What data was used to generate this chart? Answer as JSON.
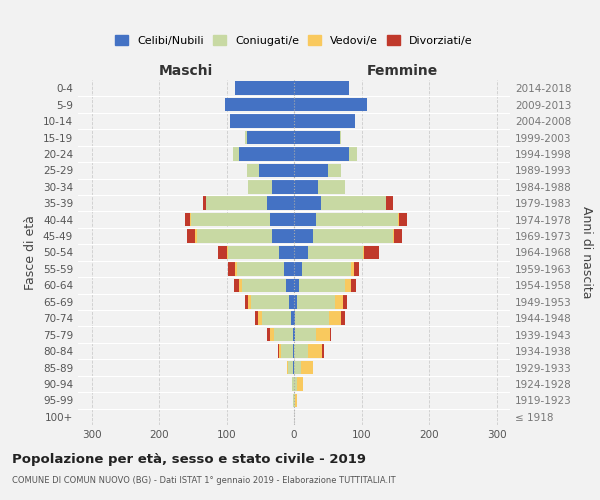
{
  "age_groups": [
    "100+",
    "95-99",
    "90-94",
    "85-89",
    "80-84",
    "75-79",
    "70-74",
    "65-69",
    "60-64",
    "55-59",
    "50-54",
    "45-49",
    "40-44",
    "35-39",
    "30-34",
    "25-29",
    "20-24",
    "15-19",
    "10-14",
    "5-9",
    "0-4"
  ],
  "birth_years": [
    "≤ 1918",
    "1919-1923",
    "1924-1928",
    "1929-1933",
    "1934-1938",
    "1939-1943",
    "1944-1948",
    "1949-1953",
    "1954-1958",
    "1959-1963",
    "1964-1968",
    "1969-1973",
    "1974-1978",
    "1979-1983",
    "1984-1988",
    "1989-1993",
    "1994-1998",
    "1999-2003",
    "2004-2008",
    "2009-2013",
    "2014-2018"
  ],
  "maschi": {
    "celibi": [
      0,
      0,
      0,
      1,
      1,
      2,
      5,
      8,
      12,
      15,
      22,
      32,
      35,
      40,
      32,
      52,
      82,
      70,
      95,
      102,
      87
    ],
    "coniugati": [
      0,
      1,
      3,
      8,
      18,
      28,
      42,
      55,
      65,
      70,
      76,
      112,
      118,
      90,
      36,
      18,
      8,
      2,
      0,
      0,
      0
    ],
    "vedovi": [
      0,
      0,
      0,
      2,
      3,
      5,
      6,
      5,
      4,
      3,
      2,
      2,
      1,
      0,
      0,
      0,
      0,
      0,
      0,
      0,
      0
    ],
    "divorziati": [
      0,
      0,
      0,
      0,
      2,
      5,
      5,
      5,
      8,
      10,
      12,
      12,
      8,
      5,
      0,
      0,
      0,
      0,
      0,
      0,
      0
    ]
  },
  "femmine": {
    "nubili": [
      0,
      0,
      0,
      0,
      0,
      1,
      2,
      5,
      8,
      12,
      20,
      28,
      32,
      40,
      36,
      50,
      82,
      68,
      90,
      108,
      82
    ],
    "coniugate": [
      0,
      1,
      5,
      10,
      20,
      32,
      50,
      56,
      68,
      72,
      82,
      118,
      122,
      96,
      40,
      20,
      12,
      2,
      0,
      0,
      0
    ],
    "vedove": [
      0,
      3,
      8,
      18,
      22,
      20,
      18,
      12,
      8,
      5,
      2,
      2,
      2,
      0,
      0,
      0,
      0,
      0,
      0,
      0,
      0
    ],
    "divorziate": [
      0,
      0,
      0,
      0,
      2,
      2,
      5,
      5,
      8,
      8,
      22,
      12,
      12,
      10,
      0,
      0,
      0,
      0,
      0,
      0,
      0
    ]
  },
  "colors": {
    "celibi": "#4472c4",
    "coniugati": "#c8d9a3",
    "vedovi": "#f9c95e",
    "divorziati": "#c0392b"
  },
  "xlim": 320,
  "title": "Popolazione per età, sesso e stato civile - 2019",
  "subtitle": "COMUNE DI COMUN NUOVO (BG) - Dati ISTAT 1° gennaio 2019 - Elaborazione TUTTITALIA.IT",
  "ylabel_left": "Fasce di età",
  "ylabel_right": "Anni di nascita",
  "xlabel_maschi": "Maschi",
  "xlabel_femmine": "Femmine",
  "bg_color": "#f2f2f2",
  "legend_labels": [
    "Celibi/Nubili",
    "Coniugati/e",
    "Vedovi/e",
    "Divorziati/e"
  ],
  "xticks": [
    -300,
    -200,
    -100,
    0,
    100,
    200,
    300
  ]
}
